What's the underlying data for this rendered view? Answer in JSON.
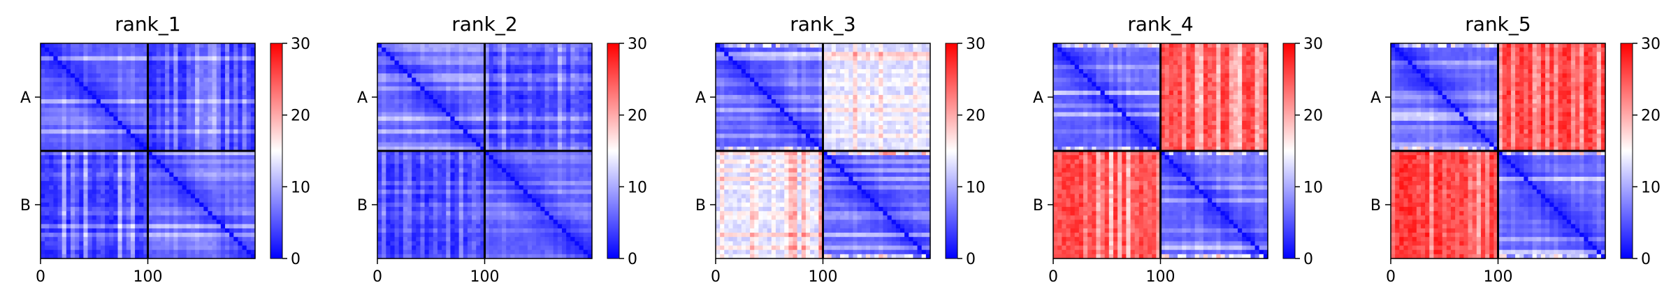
{
  "chart_data": [
    {
      "type": "heatmap",
      "title": "rank_1",
      "chains": [
        "A",
        "B"
      ],
      "chain_boundary": 100,
      "x_range": [
        0,
        200
      ],
      "y_range": [
        0,
        200
      ],
      "x_ticks": [
        0,
        100
      ],
      "x_tick_labels": [
        "0",
        "100"
      ],
      "y_tick_labels": [
        "A",
        "B"
      ],
      "inter_chain_error": 4,
      "colorbar": {
        "min": 0,
        "max": 30,
        "ticks": [
          0,
          10,
          20,
          30
        ],
        "tick_labels": [
          "0",
          "10",
          "20",
          "30"
        ]
      }
    },
    {
      "type": "heatmap",
      "title": "rank_2",
      "chains": [
        "A",
        "B"
      ],
      "chain_boundary": 100,
      "x_range": [
        0,
        200
      ],
      "y_range": [
        0,
        200
      ],
      "x_ticks": [
        0,
        100
      ],
      "x_tick_labels": [
        "0",
        "100"
      ],
      "y_tick_labels": [
        "A",
        "B"
      ],
      "inter_chain_error": 4,
      "colorbar": {
        "min": 0,
        "max": 30,
        "ticks": [
          0,
          10,
          20,
          30
        ],
        "tick_labels": [
          "0",
          "10",
          "20",
          "30"
        ]
      }
    },
    {
      "type": "heatmap",
      "title": "rank_3",
      "chains": [
        "A",
        "B"
      ],
      "chain_boundary": 100,
      "x_range": [
        0,
        200
      ],
      "y_range": [
        0,
        200
      ],
      "x_ticks": [
        0,
        100
      ],
      "x_tick_labels": [
        "0",
        "100"
      ],
      "y_tick_labels": [
        "A",
        "B"
      ],
      "inter_chain_error": 14,
      "colorbar": {
        "min": 0,
        "max": 30,
        "ticks": [
          0,
          10,
          20,
          30
        ],
        "tick_labels": [
          "0",
          "10",
          "20",
          "30"
        ]
      }
    },
    {
      "type": "heatmap",
      "title": "rank_4",
      "chains": [
        "A",
        "B"
      ],
      "chain_boundary": 100,
      "x_range": [
        0,
        200
      ],
      "y_range": [
        0,
        200
      ],
      "x_ticks": [
        0,
        100
      ],
      "x_tick_labels": [
        "0",
        "100"
      ],
      "y_tick_labels": [
        "A",
        "B"
      ],
      "inter_chain_error": 24,
      "colorbar": {
        "min": 0,
        "max": 30,
        "ticks": [
          0,
          10,
          20,
          30
        ],
        "tick_labels": [
          "0",
          "10",
          "20",
          "30"
        ]
      }
    },
    {
      "type": "heatmap",
      "title": "rank_5",
      "chains": [
        "A",
        "B"
      ],
      "chain_boundary": 100,
      "x_range": [
        0,
        200
      ],
      "y_range": [
        0,
        200
      ],
      "x_ticks": [
        0,
        100
      ],
      "x_tick_labels": [
        "0",
        "100"
      ],
      "y_tick_labels": [
        "A",
        "B"
      ],
      "inter_chain_error": 25,
      "colorbar": {
        "min": 0,
        "max": 30,
        "ticks": [
          0,
          10,
          20,
          30
        ],
        "tick_labels": [
          "0",
          "10",
          "20",
          "30"
        ]
      }
    }
  ],
  "colors": {
    "low": "#0000ff",
    "mid": "#ffffff",
    "high": "#ff0000",
    "divider": "#000000"
  }
}
